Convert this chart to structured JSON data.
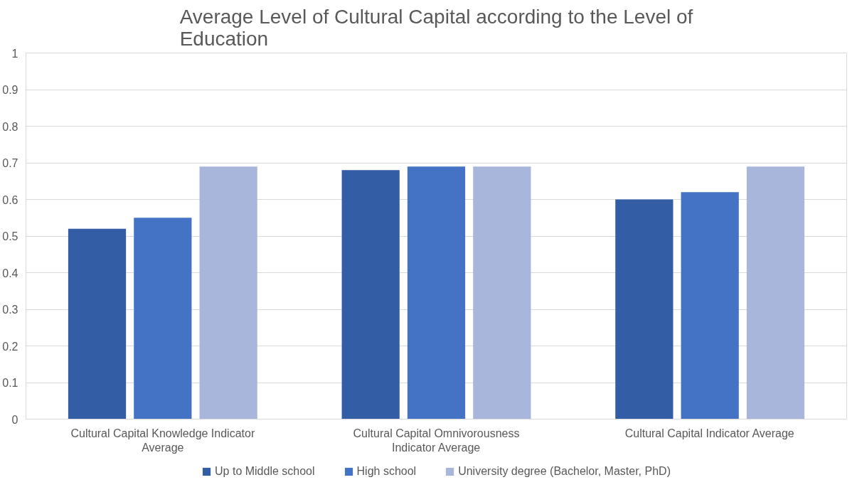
{
  "chart_data": {
    "type": "bar",
    "title": "Average Level of Cultural Capital according to the Level of Education",
    "categories": [
      "Cultural Capital Knowledge Indicator Average",
      "Cultural Capital Omnivorousness Indicator Average",
      "Cultural Capital Indicator Average"
    ],
    "series": [
      {
        "name": "Up to Middle school",
        "color": "#335ea5",
        "values": [
          0.52,
          0.68,
          0.6
        ]
      },
      {
        "name": "High school",
        "color": "#4472c4",
        "values": [
          0.55,
          0.69,
          0.62
        ]
      },
      {
        "name": "University degree (Bachelor, Master, PhD)",
        "color": "#a9b6dc",
        "values": [
          0.69,
          0.69,
          0.69
        ]
      }
    ],
    "ylim": [
      0,
      1
    ],
    "yticks": [
      0,
      0.1,
      0.2,
      0.3,
      0.4,
      0.5,
      0.6,
      0.7,
      0.8,
      0.9,
      1
    ],
    "grid": "y",
    "legend": "bottom"
  }
}
